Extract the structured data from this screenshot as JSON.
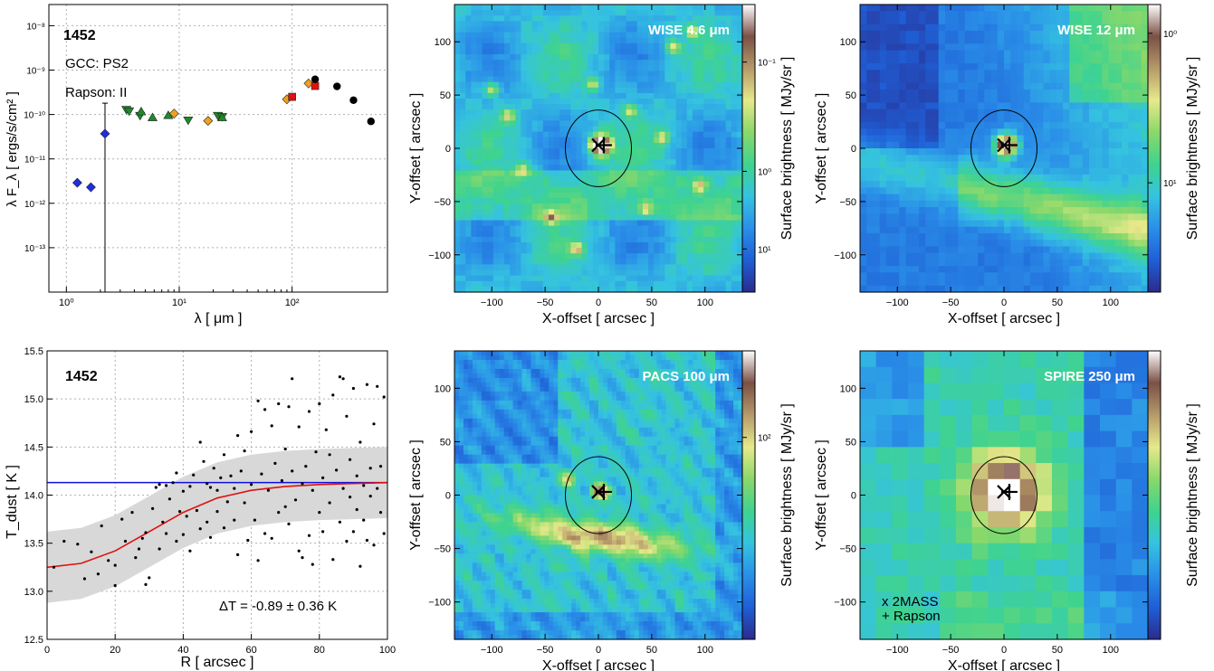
{
  "chart_data": [
    {
      "type": "scatter",
      "panel": "sed",
      "source_id": "1452",
      "annotations": [
        "GCC: PS2",
        "Rapson:  II"
      ],
      "xlabel": "λ  [ μm ]",
      "ylabel": "λ F_λ  [ ergs/s/cm² ]",
      "xscale": "log",
      "yscale": "log",
      "xlim": [
        0.7,
        700
      ],
      "ylim": [
        1e-14,
        3e-08
      ],
      "x_ticks": [
        "10⁰",
        "10¹",
        "10²"
      ],
      "y_ticks": [
        "10⁻¹³",
        "10⁻¹²",
        "10⁻¹¹",
        "10⁻¹⁰",
        "10⁻⁹",
        "10⁻⁸"
      ],
      "grid": true,
      "series": [
        {
          "marker": "diamond",
          "color": "#1f2ee0",
          "x": [
            1.25,
            1.65
          ],
          "y": [
            2.9e-12,
            2.3e-12
          ]
        },
        {
          "marker": "diamond",
          "color": "#1f2ee0",
          "x": [
            2.2
          ],
          "y": [
            3.7e-11
          ],
          "errorbar_low": 1e-14,
          "errorbar_high": 1.8e-10
        },
        {
          "marker": "triangle-down",
          "color": "#1e8a2a",
          "x": [
            3.4,
            3.6,
            4.5,
            12,
            22,
            24
          ],
          "y": [
            1.3e-10,
            1.2e-10,
            9.5e-11,
            7.5e-11,
            9.5e-11,
            9e-11
          ]
        },
        {
          "marker": "triangle-up",
          "color": "#1e8a2a",
          "x": [
            4.6,
            5.8,
            8.0,
            24
          ],
          "y": [
            1.15e-10,
            8.5e-11,
            9.5e-11,
            8.5e-11
          ]
        },
        {
          "marker": "diamond",
          "color": "#f0a020",
          "x": [
            9.0,
            18,
            90,
            140
          ],
          "y": [
            1.05e-10,
            7.2e-11,
            2.2e-10,
            5e-10
          ]
        },
        {
          "marker": "square",
          "color": "#e01010",
          "x": [
            100,
            160
          ],
          "y": [
            2.5e-10,
            4.4e-10
          ]
        },
        {
          "marker": "circle",
          "color": "#000000",
          "x": [
            160,
            250,
            350,
            500
          ],
          "y": [
            6.2e-10,
            4.3e-10,
            2.1e-10,
            7e-11
          ]
        }
      ]
    },
    {
      "type": "image",
      "panel": "wise46",
      "title": "WISE 4.6 μm",
      "xlabel": "X-offset  [ arcsec ]",
      "ylabel": "Y-offset  [ arcsec ]",
      "xlim": [
        -135,
        135
      ],
      "ylim": [
        -135,
        135
      ],
      "x_ticks": [
        -100,
        -50,
        0,
        50,
        100
      ],
      "y_ticks": [
        -100,
        -50,
        0,
        50,
        100
      ],
      "colorbar_label": "Surface brightness  [ MJy/sr ]",
      "colorbar_ticks": [
        "10¹",
        "10⁰",
        "10⁻¹"
      ],
      "markers": [
        {
          "symbol": "+",
          "x": 5,
          "y": 3
        },
        {
          "symbol": "x",
          "x": 0,
          "y": 3
        }
      ],
      "ellipse": {
        "cx": 0,
        "cy": 0,
        "rx": 31,
        "ry": 36
      }
    },
    {
      "type": "image",
      "panel": "wise12",
      "title": "WISE 12 μm",
      "xlabel": "X-offset  [ arcsec ]",
      "ylabel": "Y-offset  [ arcsec ]",
      "xlim": [
        -135,
        135
      ],
      "ylim": [
        -135,
        135
      ],
      "x_ticks": [
        -100,
        -50,
        0,
        50,
        100
      ],
      "y_ticks": [
        -100,
        -50,
        0,
        50,
        100
      ],
      "colorbar_label": "Surface brightness  [ MJy/sr ]",
      "colorbar_ticks": [
        "10¹",
        "10⁰"
      ],
      "markers": [
        {
          "symbol": "+",
          "x": 5,
          "y": 3
        },
        {
          "symbol": "x",
          "x": 0,
          "y": 3
        }
      ],
      "ellipse": {
        "cx": 0,
        "cy": 0,
        "rx": 31,
        "ry": 36
      }
    },
    {
      "type": "scatter",
      "panel": "tdust",
      "source_id": "1452",
      "xlabel": "R [ arcsec ]",
      "ylabel": "T_dust  [ K ]",
      "xlim": [
        0,
        100
      ],
      "ylim": [
        12.5,
        15.5
      ],
      "x_ticks": [
        0,
        20,
        40,
        60,
        80,
        100
      ],
      "y_ticks": [
        12.5,
        13.0,
        13.5,
        14.0,
        14.5,
        15.0,
        15.5
      ],
      "grid": true,
      "hline": 14.13,
      "fit_curve": {
        "r": [
          0,
          10,
          20,
          30,
          40,
          50,
          60,
          70,
          80,
          90,
          100
        ],
        "t": [
          13.25,
          13.29,
          13.42,
          13.62,
          13.82,
          13.97,
          14.05,
          14.09,
          14.11,
          14.12,
          14.13
        ]
      },
      "band_halfwidth": 0.37,
      "annotation": "ΔT = -0.89 ± 0.36 K",
      "points": [
        [
          2,
          13.25
        ],
        [
          5,
          13.52
        ],
        [
          9,
          13.49
        ],
        [
          11,
          13.13
        ],
        [
          13,
          13.41
        ],
        [
          15,
          13.18
        ],
        [
          16,
          13.68
        ],
        [
          18,
          13.32
        ],
        [
          20,
          13.27
        ],
        [
          20,
          13.06
        ],
        [
          22,
          13.75
        ],
        [
          23,
          13.52
        ],
        [
          25,
          13.82
        ],
        [
          26,
          13.35
        ],
        [
          27,
          13.44
        ],
        [
          28,
          13.55
        ],
        [
          29,
          13.07
        ],
        [
          29,
          13.61
        ],
        [
          30,
          13.14
        ],
        [
          31,
          13.86
        ],
        [
          32,
          14.08
        ],
        [
          33,
          14.11
        ],
        [
          33,
          13.44
        ],
        [
          34,
          13.72
        ],
        [
          35,
          13.6
        ],
        [
          35,
          14.1
        ],
        [
          36,
          13.96
        ],
        [
          37,
          14.13
        ],
        [
          38,
          14.23
        ],
        [
          38,
          13.52
        ],
        [
          39,
          13.83
        ],
        [
          40,
          14.04
        ],
        [
          40,
          13.59
        ],
        [
          41,
          13.78
        ],
        [
          42,
          14.09
        ],
        [
          42,
          13.42
        ],
        [
          43,
          14.21
        ],
        [
          44,
          13.84
        ],
        [
          45,
          14.55
        ],
        [
          45,
          13.65
        ],
        [
          46,
          14.35
        ],
        [
          47,
          14.12
        ],
        [
          47,
          13.72
        ],
        [
          48,
          14.08
        ],
        [
          48,
          13.56
        ],
        [
          49,
          14.28
        ],
        [
          50,
          13.83
        ],
        [
          50,
          14.05
        ],
        [
          51,
          14.18
        ],
        [
          52,
          13.66
        ],
        [
          52,
          14.42
        ],
        [
          53,
          13.93
        ],
        [
          54,
          14.2
        ],
        [
          55,
          13.74
        ],
        [
          55,
          14.07
        ],
        [
          56,
          14.62
        ],
        [
          56,
          13.38
        ],
        [
          57,
          14.25
        ],
        [
          58,
          13.92
        ],
        [
          58,
          14.46
        ],
        [
          59,
          13.53
        ],
        [
          60,
          14.11
        ],
        [
          60,
          14.66
        ],
        [
          61,
          13.74
        ],
        [
          62,
          14.98
        ],
        [
          62,
          13.32
        ],
        [
          63,
          14.22
        ],
        [
          64,
          14.89
        ],
        [
          64,
          13.6
        ],
        [
          65,
          14.05
        ],
        [
          66,
          13.55
        ],
        [
          66,
          14.72
        ],
        [
          67,
          14.33
        ],
        [
          68,
          13.82
        ],
        [
          68,
          14.95
        ],
        [
          69,
          14.15
        ],
        [
          70,
          13.88
        ],
        [
          70,
          14.48
        ],
        [
          71,
          14.92
        ],
        [
          71,
          13.7
        ],
        [
          72,
          15.21
        ],
        [
          72,
          14.25
        ],
        [
          73,
          13.95
        ],
        [
          74,
          14.71
        ],
        [
          74,
          13.42
        ],
        [
          75,
          14.12
        ],
        [
          75,
          13.35
        ],
        [
          76,
          14.3
        ],
        [
          77,
          14.87
        ],
        [
          77,
          13.58
        ],
        [
          78,
          14.05
        ],
        [
          78,
          13.28
        ],
        [
          79,
          14.45
        ],
        [
          80,
          13.82
        ],
        [
          80,
          14.95
        ],
        [
          81,
          14.18
        ],
        [
          81,
          13.62
        ],
        [
          82,
          14.68
        ],
        [
          83,
          13.92
        ],
        [
          83,
          14.42
        ],
        [
          84,
          15.04
        ],
        [
          84,
          13.33
        ],
        [
          85,
          14.26
        ],
        [
          86,
          15.23
        ],
        [
          86,
          13.72
        ],
        [
          87,
          15.21
        ],
        [
          87,
          14.07
        ],
        [
          88,
          13.52
        ],
        [
          88,
          14.82
        ],
        [
          89,
          13.98
        ],
        [
          89,
          14.37
        ],
        [
          90,
          13.62
        ],
        [
          90,
          15.11
        ],
        [
          91,
          14.2
        ],
        [
          91,
          13.85
        ],
        [
          92,
          14.55
        ],
        [
          92,
          13.26
        ],
        [
          93,
          14.1
        ],
        [
          93,
          13.74
        ],
        [
          94,
          15.15
        ],
        [
          94,
          13.53
        ],
        [
          95,
          14.28
        ],
        [
          95,
          13.99
        ],
        [
          96,
          14.74
        ],
        [
          96,
          13.48
        ],
        [
          97,
          15.13
        ],
        [
          97,
          14.07
        ],
        [
          98,
          13.82
        ],
        [
          98,
          14.3
        ],
        [
          99,
          13.6
        ],
        [
          99,
          15.02
        ]
      ]
    },
    {
      "type": "image",
      "panel": "pacs100",
      "title": "PACS 100 μm",
      "xlabel": "X-offset  [ arcsec ]",
      "ylabel": "Y-offset  [ arcsec ]",
      "xlim": [
        -135,
        135
      ],
      "ylim": [
        -135,
        135
      ],
      "x_ticks": [
        -100,
        -50,
        0,
        50,
        100
      ],
      "y_ticks": [
        -100,
        -50,
        0,
        50,
        100
      ],
      "colorbar_label": "Surface brightness  [ MJy/sr ]",
      "colorbar_ticks": [
        "10²"
      ],
      "markers": [
        {
          "symbol": "+",
          "x": 5,
          "y": 3
        },
        {
          "symbol": "x",
          "x": 0,
          "y": 3
        }
      ],
      "ellipse": {
        "cx": 0,
        "cy": 0,
        "rx": 31,
        "ry": 36
      }
    },
    {
      "type": "image",
      "panel": "spire250",
      "title": "SPIRE 250 μm",
      "xlabel": "X-offset  [ arcsec ]",
      "ylabel": "Y-offset  [ arcsec ]",
      "xlim": [
        -135,
        135
      ],
      "ylim": [
        -135,
        135
      ],
      "x_ticks": [
        -100,
        -50,
        0,
        50,
        100
      ],
      "y_ticks": [
        -100,
        -50,
        0,
        50,
        100
      ],
      "colorbar_label": "Surface brightness  [ MJy/sr ]",
      "colorbar_ticks": [],
      "legend": [
        "x 2MASS",
        "+ Rapson"
      ],
      "markers": [
        {
          "symbol": "+",
          "x": 5,
          "y": 3
        },
        {
          "symbol": "x",
          "x": 0,
          "y": 3
        }
      ],
      "ellipse": {
        "cx": 0,
        "cy": 0,
        "rx": 31,
        "ry": 36
      }
    }
  ],
  "colors": {
    "colormap": [
      "#2b2b8c",
      "#1f5fd6",
      "#2a8fe8",
      "#35c3e0",
      "#3fd38f",
      "#8ad86a",
      "#e6e98a",
      "#b59a6a",
      "#7b5046",
      "#ffffff"
    ],
    "fit_line": "#e01010",
    "mean_line": "#1010e0",
    "band": "#d8d8d8"
  }
}
